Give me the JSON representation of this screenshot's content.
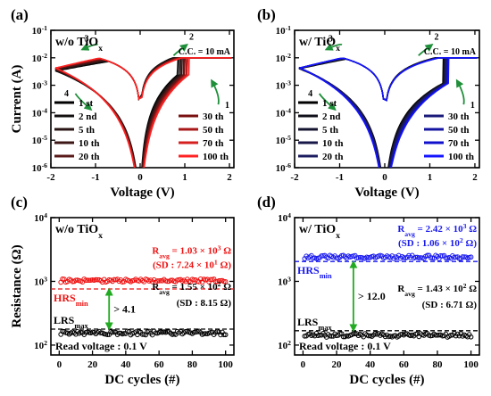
{
  "chart_data": [
    {
      "type": "line",
      "panel_label": "(a)",
      "condition": "w/o TiO",
      "condition_sub": "x",
      "xlabel": "Voltage (V)",
      "ylabel": "Current (A)",
      "xlim": [
        -2,
        2.1
      ],
      "ylim_log": [
        1e-06,
        0.1
      ],
      "x_ticks": [
        "-2",
        "-1",
        "0",
        "1",
        "2"
      ],
      "y_ticks": [
        {
          "b": "10",
          "e": "-1"
        },
        {
          "b": "10",
          "e": "-2"
        },
        {
          "b": "10",
          "e": "-3"
        },
        {
          "b": "10",
          "e": "-4"
        },
        {
          "b": "10",
          "e": "-5"
        },
        {
          "b": "10",
          "e": "-6"
        }
      ],
      "compliance": "C.C. = 10 mA",
      "sweep_labels": [
        "1",
        "2",
        "3",
        "4"
      ],
      "legend_left": [
        "1 st",
        "2 nd",
        "5 th",
        "10 th",
        "20 th"
      ],
      "legend_right": [
        "30 th",
        "50 th",
        "70 th",
        "100 th"
      ],
      "legend_left_colors": [
        "#000000",
        "#141010",
        "#2a1414",
        "#3d1616",
        "#5a1a1a"
      ],
      "legend_right_colors": [
        "#7a1010",
        "#a81818",
        "#d62020",
        "#ff2222"
      ],
      "series_note": "one I-V loop per cycle; colour from black (1st) to red (100th)"
    },
    {
      "type": "line",
      "panel_label": "(b)",
      "condition": "w/ TiO",
      "condition_sub": "x",
      "xlabel": "Voltage (V)",
      "ylabel": "",
      "xlim": [
        -2,
        2.1
      ],
      "ylim_log": [
        1e-06,
        0.1
      ],
      "x_ticks": [
        "-2",
        "-1",
        "0",
        "1",
        "2"
      ],
      "y_ticks": [
        {
          "b": "10",
          "e": "-1"
        },
        {
          "b": "10",
          "e": "-2"
        },
        {
          "b": "10",
          "e": "-3"
        },
        {
          "b": "10",
          "e": "-4"
        },
        {
          "b": "10",
          "e": "-5"
        },
        {
          "b": "10",
          "e": "-6"
        }
      ],
      "compliance": "C.C. = 10 mA",
      "sweep_labels": [
        "1",
        "2",
        "3",
        "4"
      ],
      "legend_left": [
        "1 st",
        "2 nd",
        "5 th",
        "10 th",
        "20 th"
      ],
      "legend_right": [
        "30 th",
        "50 th",
        "70 th",
        "100 th"
      ],
      "legend_left_colors": [
        "#000000",
        "#10101a",
        "#141430",
        "#181848",
        "#1c1c60"
      ],
      "legend_right_colors": [
        "#1a1a7a",
        "#1414a0",
        "#1010cc",
        "#1414ff"
      ],
      "series_note": "one I-V loop per cycle; colour from black (1st) to blue (100th)"
    },
    {
      "type": "scatter",
      "panel_label": "(c)",
      "condition": "w/o TiO",
      "condition_sub": "x",
      "xlabel": "DC cycles (#)",
      "ylabel": "Resistance (Ω)",
      "xlim": [
        -5,
        105
      ],
      "ylim_log": [
        70,
        10000
      ],
      "x_ticks": [
        "0",
        "20",
        "40",
        "60",
        "80",
        "100"
      ],
      "y_ticks": [
        {
          "b": "10",
          "e": "2"
        },
        {
          "b": "10",
          "e": "3"
        },
        {
          "b": "10",
          "e": "4"
        }
      ],
      "hrs": {
        "mean": 1030,
        "color": "#ee1111",
        "avg_text": [
          "R",
          "avg",
          " = 1.03 × 10",
          "3",
          " Ω"
        ],
        "sd_text": [
          "(SD : 7.24 × 10",
          "1",
          " Ω)"
        ],
        "min_line": 760,
        "min_label": [
          "HRS",
          "min"
        ]
      },
      "lrs": {
        "mean": 155,
        "color": "#000000",
        "avg_text": [
          "R",
          "avg",
          " = 1.55 × 10",
          "2",
          " Ω"
        ],
        "sd_text": [
          "(SD : 8.15 Ω)"
        ],
        "max_line": 178,
        "max_label": [
          "LRS",
          "max"
        ]
      },
      "window": "> 4.1",
      "window_color": "#22aa22",
      "read_voltage": "Read voltage : 0.1 V"
    },
    {
      "type": "scatter",
      "panel_label": "(d)",
      "condition": "w/ TiO",
      "condition_sub": "x",
      "xlabel": "DC cycles (#)",
      "ylabel": "",
      "xlim": [
        -5,
        105
      ],
      "ylim_log": [
        70,
        10000
      ],
      "x_ticks": [
        "0",
        "20",
        "40",
        "60",
        "80",
        "100"
      ],
      "y_ticks": [
        {
          "b": "10",
          "e": "2"
        },
        {
          "b": "10",
          "e": "3"
        },
        {
          "b": "10",
          "e": "4"
        }
      ],
      "hrs": {
        "mean": 2420,
        "color": "#1a1aee",
        "avg_text": [
          "R",
          "avg",
          " = 2.42 × 10",
          "3",
          " Ω"
        ],
        "sd_text": [
          "(SD : 1.06 × 10",
          "2",
          " Ω)"
        ],
        "min_line": 2050,
        "min_label": [
          "HRS",
          "min"
        ]
      },
      "lrs": {
        "mean": 143,
        "color": "#000000",
        "avg_text": [
          "R",
          "avg",
          " = 1.43 × 10",
          "2",
          " Ω"
        ],
        "sd_text": [
          "(SD : 6.71 Ω)"
        ],
        "max_line": 168,
        "max_label": [
          "LRS",
          "max"
        ]
      },
      "window": "> 12.0",
      "window_color": "#22aa22",
      "read_voltage": "Read voltage : 0.1 V"
    }
  ]
}
